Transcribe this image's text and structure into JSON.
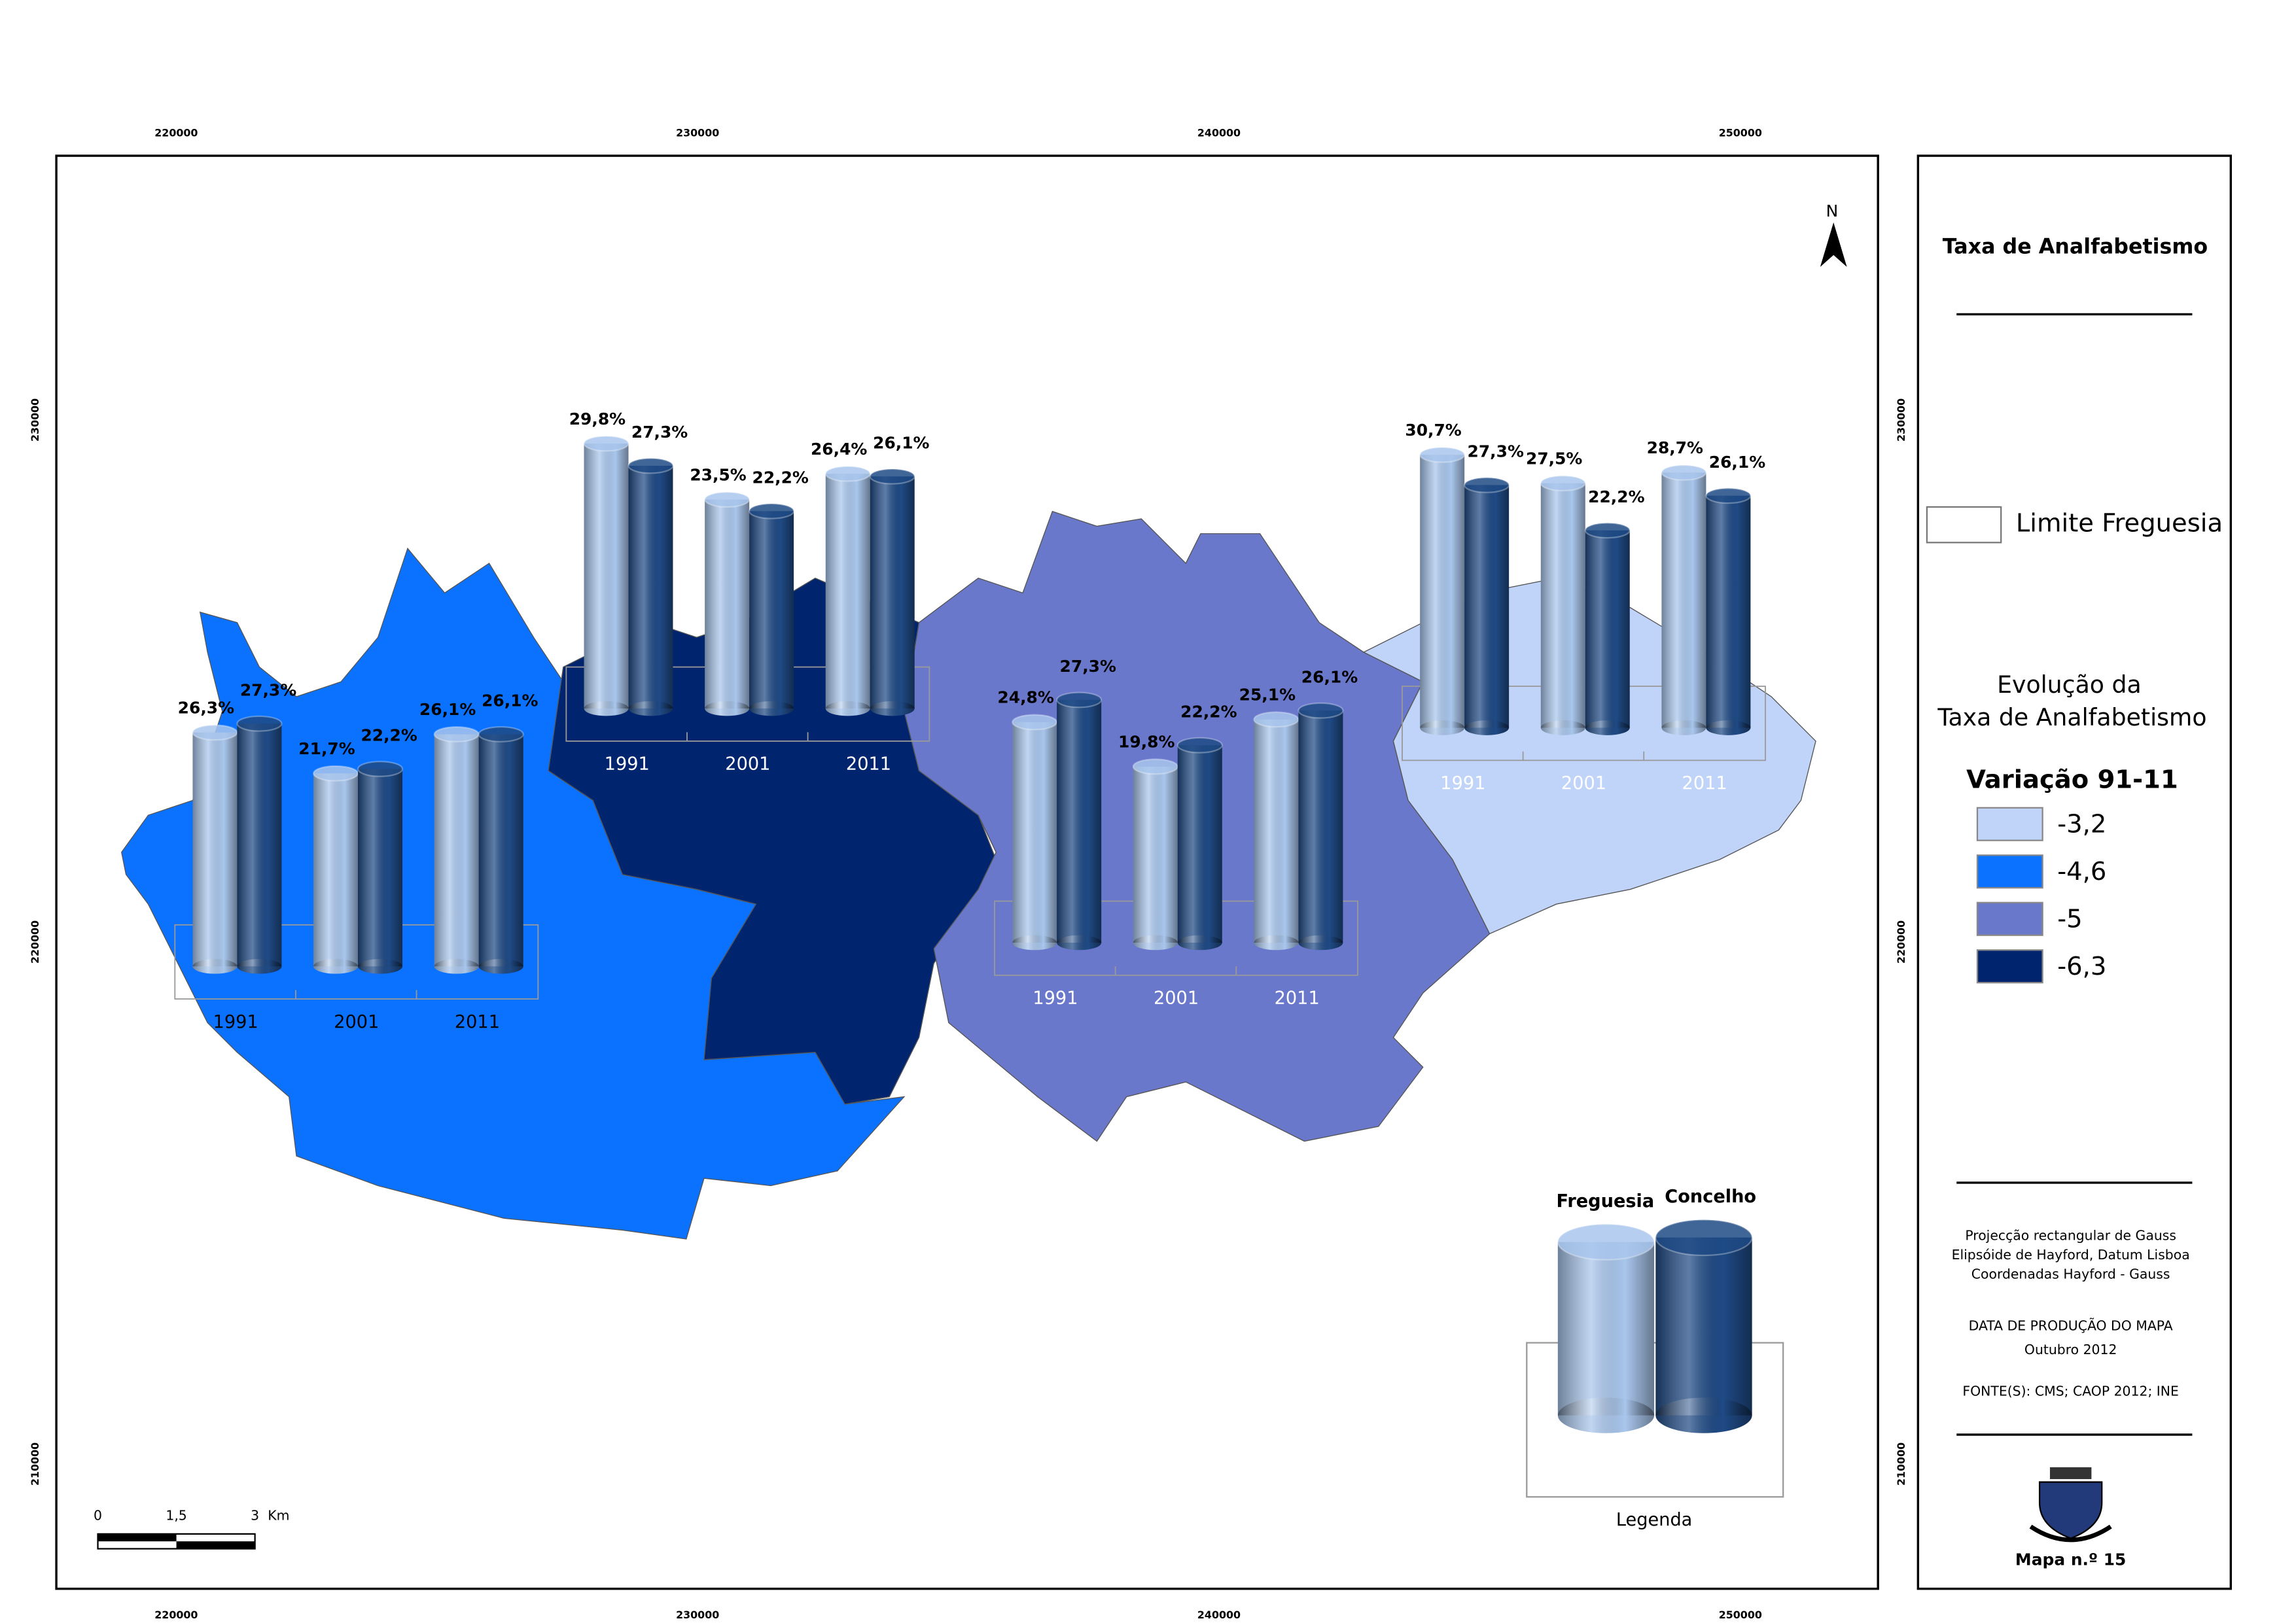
{
  "chart_data": [
    {
      "type": "bar",
      "categories": [
        "1991",
        "2001",
        "2011"
      ],
      "ylim": [
        0,
        35
      ],
      "series": [
        {
          "color": "#a9c6ec",
          "values": [
            26.3,
            21.7,
            26.1
          ],
          "value_labels": [
            "26,3%",
            "21,7%",
            "26,1%"
          ]
        },
        {
          "color": "#1f4a85",
          "values": [
            27.3,
            22.2,
            26.1
          ],
          "value_labels": [
            "27,3%",
            "22,2%",
            "26,1%"
          ]
        }
      ]
    },
    {
      "type": "bar",
      "categories": [
        "1991",
        "2001",
        "2011"
      ],
      "ylim": [
        0,
        35
      ],
      "series": [
        {
          "color": "#a9c6ec",
          "values": [
            29.8,
            23.5,
            26.4
          ],
          "value_labels": [
            "29,8%",
            "23,5%",
            "26,4%"
          ]
        },
        {
          "color": "#1f4a85",
          "values": [
            27.3,
            22.2,
            26.1
          ],
          "value_labels": [
            "27,3%",
            "22,2%",
            "26,1%"
          ]
        }
      ]
    },
    {
      "type": "bar",
      "categories": [
        "1991",
        "2001",
        "2011"
      ],
      "ylim": [
        0,
        35
      ],
      "series": [
        {
          "color": "#a9c6ec",
          "values": [
            24.8,
            19.8,
            25.1
          ],
          "value_labels": [
            "24,8%",
            "19,8%",
            "25,1%"
          ]
        },
        {
          "color": "#1f4a85",
          "values": [
            27.3,
            22.2,
            26.1
          ],
          "value_labels": [
            "27,3%",
            "22,2%",
            "26,1%"
          ]
        }
      ]
    },
    {
      "type": "bar",
      "categories": [
        "1991",
        "2001",
        "2011"
      ],
      "ylim": [
        0,
        35
      ],
      "series": [
        {
          "color": "#a9c6ec",
          "values": [
            30.7,
            27.5,
            28.7
          ],
          "value_labels": [
            "30,7%",
            "27,5%",
            "28,7%"
          ]
        },
        {
          "color": "#1f4a85",
          "values": [
            27.3,
            22.2,
            26.1
          ],
          "value_labels": [
            "27,3%",
            "22,2%",
            "26,1%"
          ]
        }
      ]
    }
  ],
  "chart_legend": {
    "title": "Legenda",
    "series": [
      {
        "name": "Freguesia",
        "color": "#a9c6ec"
      },
      {
        "name": "Concelho",
        "color": "#1f4a85"
      }
    ]
  },
  "map_grid": {
    "xlim": [
      217700,
      252640
    ],
    "ylim": [
      207610,
      235060
    ],
    "xticks": [
      220000,
      230000,
      240000,
      250000
    ],
    "yticks": [
      230000,
      220000,
      210000
    ]
  },
  "north": "N",
  "scale_bar": {
    "labels": [
      "0",
      "1,5",
      "3"
    ],
    "unit": "Km"
  },
  "panel": {
    "title": "Taxa de Analfabetismo",
    "boundary_label": "Limite Freguesia",
    "legend_title": [
      "Evolução da",
      "Taxa de Analfabetismo"
    ],
    "classes_title": "Variação 91-11",
    "classes": [
      {
        "label": "-3,2",
        "color": "#c0d4fa"
      },
      {
        "label": "-4,6",
        "color": "#0a72ff"
      },
      {
        "label": "-5",
        "color": "#6a78cc"
      },
      {
        "label": "-6,3",
        "color": "#00256e"
      }
    ],
    "notes": [
      "Projecção rectangular de Gauss",
      "Elipsóide de Hayford, Datum Lisboa",
      "Coordenadas Hayford - Gauss",
      "DATA DE PRODUÇÃO DO MAPA",
      "Outubro 2012",
      "FONTE(S): CMS; CAOP 2012; INE"
    ],
    "map_number": "Mapa n.º 15"
  }
}
